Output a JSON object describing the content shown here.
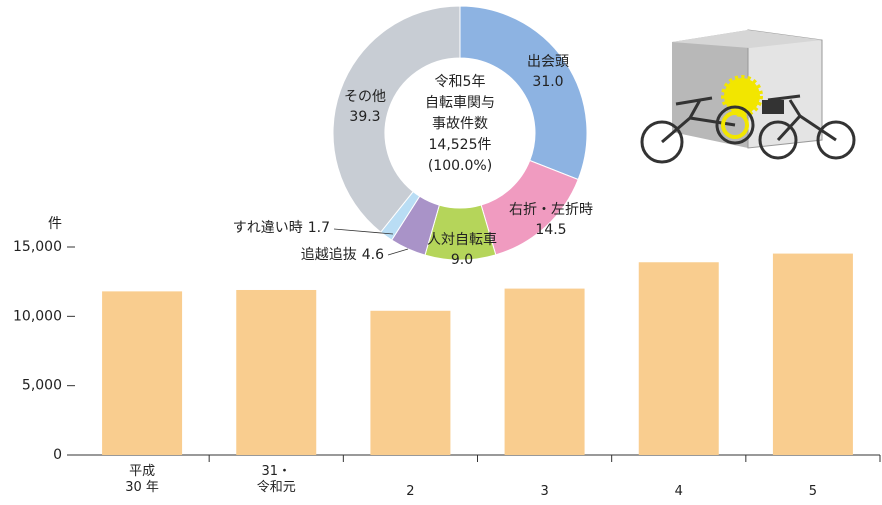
{
  "chart_data": [
    {
      "type": "bar",
      "y_label": "件",
      "categories": [
        "平成\n30 年",
        "31・\n令和元",
        "2",
        "3",
        "4",
        "5"
      ],
      "values": [
        11800,
        11900,
        10400,
        12000,
        13900,
        14525
      ],
      "color": "#f9cd8f",
      "ylim": [
        0,
        15000
      ],
      "yticks": [
        0,
        {
          "value": 5000,
          "label": "5,000"
        },
        {
          "value": 10000,
          "label": "10,000"
        },
        {
          "value": 15000,
          "label": "15,000"
        }
      ]
    },
    {
      "type": "pie",
      "center_label": [
        "令和5年",
        "自転車関与",
        "事故件数",
        "14,525件",
        "(100.0%)"
      ],
      "categories": [
        "出会頭",
        "右折・左折時",
        "人対自転車",
        "追越追抜",
        "すれ違い時",
        "その他"
      ],
      "values": [
        31.0,
        14.5,
        9.0,
        4.6,
        1.7,
        39.3
      ],
      "value_labels": [
        "31.0",
        "14.5",
        "9.0",
        "4.6",
        "1.7",
        "39.3"
      ],
      "colors": [
        "#8db3e2",
        "#f09bc0",
        "#b5d55a",
        "#a993c8",
        "#b9ddf4",
        "#c8cdd4"
      ]
    }
  ]
}
